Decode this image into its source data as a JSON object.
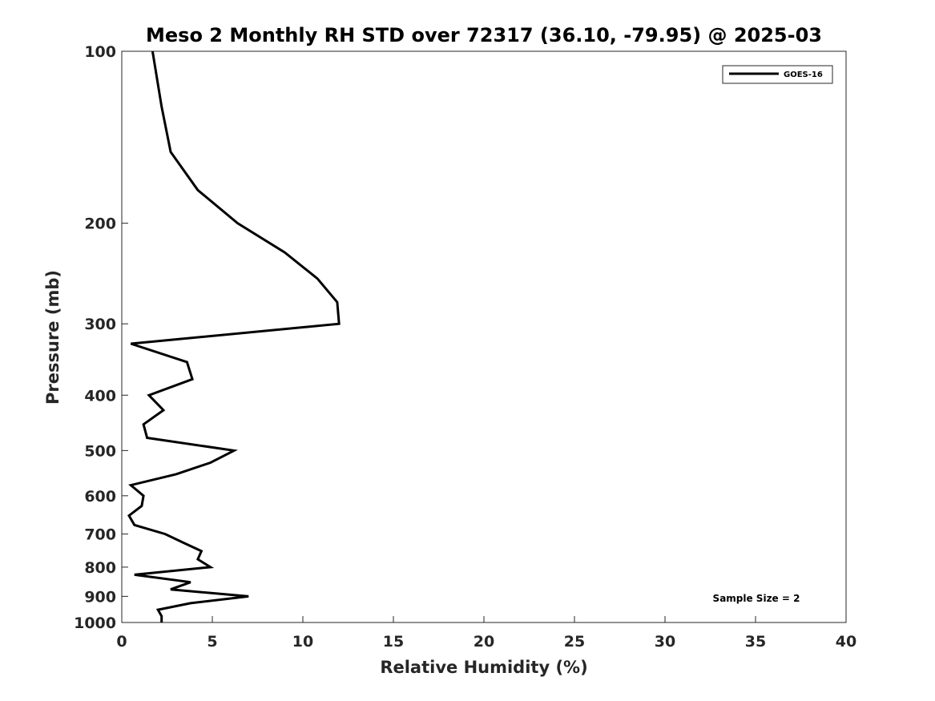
{
  "chart_data": {
    "type": "line",
    "title": "Meso 2 Monthly RH STD over 72317 (36.10, -79.95) @ 2025-03",
    "xlabel": "Relative Humidity (%)",
    "ylabel": "Pressure (mb)",
    "xlim": [
      0,
      40
    ],
    "ylim": [
      100,
      1000
    ],
    "y_scale": "log",
    "y_reversed": true,
    "grid": false,
    "x_ticks": [
      "0",
      "5",
      "10",
      "15",
      "20",
      "25",
      "30",
      "35",
      "40"
    ],
    "y_ticks": [
      "100",
      "200",
      "300",
      "400",
      "500",
      "600",
      "700",
      "800",
      "900",
      "1000"
    ],
    "legend_position": "top-right",
    "annotation": "Sample Size = 2",
    "series": [
      {
        "name": "GOES-16",
        "color": "#000000",
        "points": [
          {
            "x": 1.7,
            "y": 100
          },
          {
            "x": 2.2,
            "y": 125
          },
          {
            "x": 2.7,
            "y": 150
          },
          {
            "x": 4.2,
            "y": 175
          },
          {
            "x": 6.4,
            "y": 200
          },
          {
            "x": 9.0,
            "y": 225
          },
          {
            "x": 10.8,
            "y": 250
          },
          {
            "x": 11.9,
            "y": 275
          },
          {
            "x": 12.0,
            "y": 300
          },
          {
            "x": 0.5,
            "y": 325
          },
          {
            "x": 3.6,
            "y": 350
          },
          {
            "x": 3.9,
            "y": 375
          },
          {
            "x": 1.5,
            "y": 400
          },
          {
            "x": 2.3,
            "y": 425
          },
          {
            "x": 1.2,
            "y": 450
          },
          {
            "x": 1.4,
            "y": 475
          },
          {
            "x": 6.2,
            "y": 500
          },
          {
            "x": 4.9,
            "y": 525
          },
          {
            "x": 3.0,
            "y": 550
          },
          {
            "x": 0.5,
            "y": 575
          },
          {
            "x": 1.2,
            "y": 600
          },
          {
            "x": 1.1,
            "y": 625
          },
          {
            "x": 0.4,
            "y": 650
          },
          {
            "x": 0.7,
            "y": 675
          },
          {
            "x": 2.4,
            "y": 700
          },
          {
            "x": 3.4,
            "y": 725
          },
          {
            "x": 4.4,
            "y": 750
          },
          {
            "x": 4.2,
            "y": 775
          },
          {
            "x": 4.9,
            "y": 800
          },
          {
            "x": 0.7,
            "y": 825
          },
          {
            "x": 3.8,
            "y": 850
          },
          {
            "x": 2.7,
            "y": 875
          },
          {
            "x": 7.0,
            "y": 900
          },
          {
            "x": 3.8,
            "y": 925
          },
          {
            "x": 2.0,
            "y": 950
          },
          {
            "x": 2.2,
            "y": 975
          },
          {
            "x": 2.2,
            "y": 1000
          }
        ]
      }
    ]
  }
}
